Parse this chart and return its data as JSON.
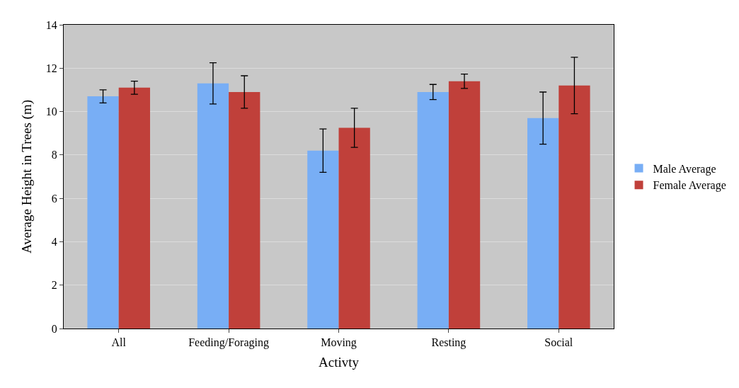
{
  "chart_data": {
    "type": "bar",
    "xlabel": "Activty",
    "ylabel": "Average Height in Trees (m)",
    "categories": [
      "All",
      "Feeding/Foraging",
      "Moving",
      "Resting",
      "Social"
    ],
    "series": [
      {
        "name": "Male Average",
        "color": "#78aef5",
        "values": [
          10.7,
          11.3,
          8.2,
          10.9,
          9.7
        ],
        "errors": [
          0.3,
          0.95,
          1.0,
          0.35,
          1.2
        ]
      },
      {
        "name": "Female Average",
        "color": "#c0403a",
        "values": [
          11.1,
          10.9,
          9.25,
          11.4,
          11.2
        ],
        "errors": [
          0.3,
          0.75,
          0.9,
          0.33,
          1.3
        ]
      }
    ],
    "ylim": [
      0,
      14
    ],
    "yticks": [
      0,
      2,
      4,
      6,
      8,
      10,
      12,
      14
    ],
    "grid": "y",
    "legend": "right"
  }
}
